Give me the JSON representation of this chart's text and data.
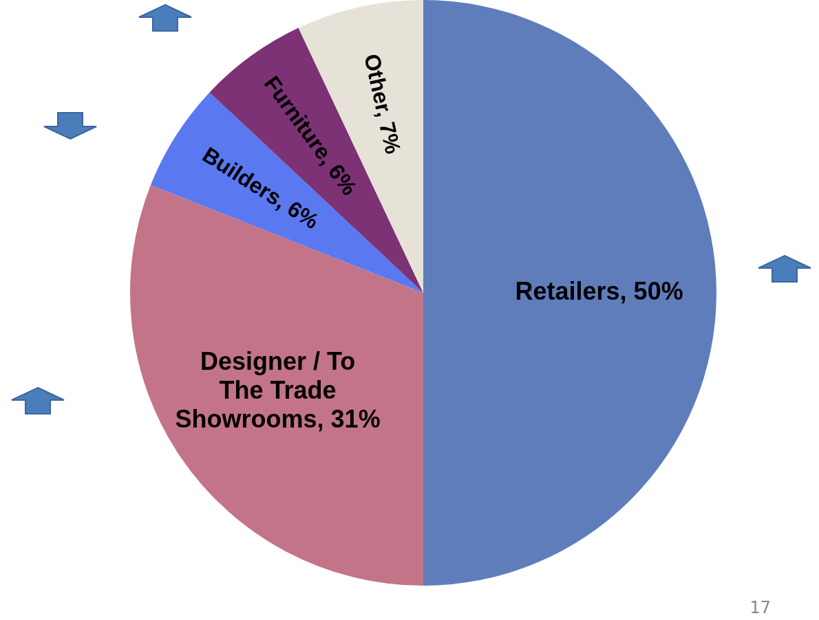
{
  "chart_data": {
    "type": "pie",
    "categories": [
      "Retailers",
      "Designer / To The Trade Showrooms",
      "Builders",
      "Furniture",
      "Other"
    ],
    "values": [
      50,
      31,
      6,
      6,
      7
    ],
    "colors": [
      "#5f7dbb",
      "#c47488",
      "#5a78f0",
      "#7c3274",
      "#e6e2d8"
    ],
    "value_labels": [
      "50%",
      "31%",
      "6%",
      "6%",
      "7%"
    ],
    "legend": false,
    "annotations": [
      "17"
    ]
  }
}
